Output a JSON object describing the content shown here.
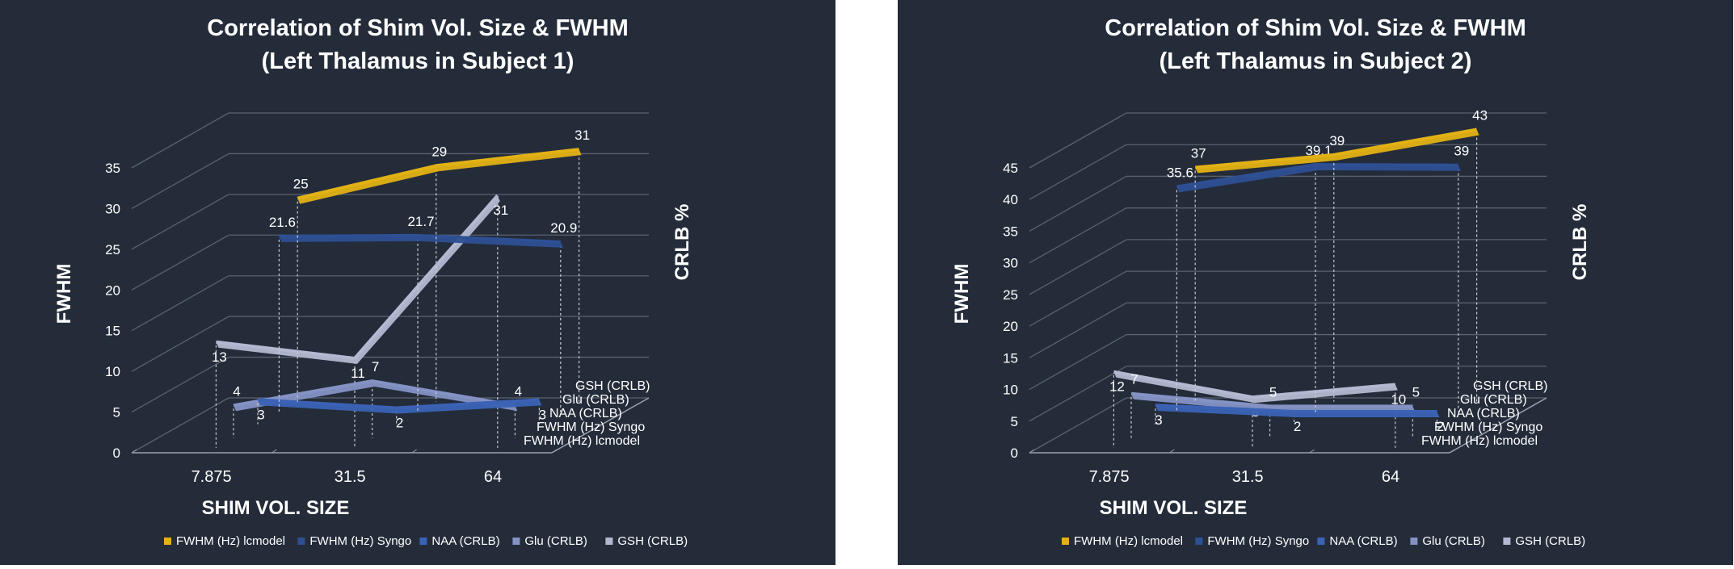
{
  "chart_data": [
    {
      "type": "line",
      "title": "Correlation of Shim Vol. Size & FWHM",
      "subtitle": "(Left Thalamus in Subject 1)",
      "xlabel": "SHIM VOL. SIZE",
      "ylabel": "FWHM",
      "ylabel_right": "CRLB %",
      "categories": [
        "7.875",
        "31.5",
        "64"
      ],
      "ylim": [
        0,
        35
      ],
      "yticks": [
        "0",
        "5",
        "10",
        "15",
        "20",
        "25",
        "30",
        "35"
      ],
      "grid": true,
      "legend_position": "bottom",
      "series": [
        {
          "name": "FWHM (Hz) lcmodel",
          "color": "#e2b114",
          "values": [
            25,
            29,
            31
          ],
          "labels": [
            "25",
            "29",
            "31"
          ]
        },
        {
          "name": "FWHM (Hz) Syngo",
          "color": "#2e4f93",
          "values": [
            21.6,
            21.7,
            20.9
          ],
          "labels": [
            "21.6",
            "21.7",
            "20.9"
          ]
        },
        {
          "name": "NAA (CRLB)",
          "color": "#3b62b5",
          "values": [
            3,
            2,
            3
          ],
          "labels": [
            "3",
            "2",
            "3"
          ]
        },
        {
          "name": "Glu (CRLB)",
          "color": "#8492c4",
          "values": [
            4,
            7,
            4
          ],
          "labels": [
            "4",
            "7",
            "4"
          ]
        },
        {
          "name": "GSH (CRLB)",
          "color": "#b3b9d0",
          "values": [
            13,
            11,
            31
          ],
          "labels": [
            "13",
            "11",
            "31"
          ]
        }
      ],
      "depth_labels": [
        "GSH (CRLB)",
        "Glu (CRLB)",
        "NAA (CRLB)",
        "FWHM (Hz) Syngo",
        "FWHM (Hz) lcmodel"
      ]
    },
    {
      "type": "line",
      "title": "Correlation of Shim Vol. Size & FWHM",
      "subtitle": "(Left Thalamus in Subject 2)",
      "xlabel": "SHIM VOL. SIZE",
      "ylabel": "FWHM",
      "ylabel_right": "CRLB %",
      "categories": [
        "7.875",
        "31.5",
        "64"
      ],
      "ylim": [
        0,
        45
      ],
      "yticks": [
        "0",
        "5",
        "10",
        "15",
        "20",
        "25",
        "30",
        "35",
        "40",
        "45"
      ],
      "grid": true,
      "legend_position": "bottom",
      "series": [
        {
          "name": "FWHM (Hz) lcmodel",
          "color": "#e2b114",
          "values": [
            37,
            39,
            43
          ],
          "labels": [
            "37",
            "39",
            "43"
          ]
        },
        {
          "name": "FWHM (Hz) Syngo",
          "color": "#2e4f93",
          "values": [
            35.6,
            39.1,
            39
          ],
          "labels": [
            "35.6",
            "39.1",
            "39"
          ]
        },
        {
          "name": "NAA (CRLB)",
          "color": "#3b62b5",
          "values": [
            3,
            2,
            2
          ],
          "labels": [
            "3",
            "2",
            "2"
          ]
        },
        {
          "name": "Glu (CRLB)",
          "color": "#8492c4",
          "values": [
            7,
            5,
            5
          ],
          "labels": [
            "7",
            "5",
            "5"
          ]
        },
        {
          "name": "GSH (CRLB)",
          "color": "#b3b9d0",
          "values": [
            12,
            8,
            10
          ],
          "labels": [
            "12",
            "8",
            "10"
          ]
        }
      ],
      "depth_labels": [
        "GSH (CRLB)",
        "Glu (CRLB)",
        "NAA (CRLB)",
        "FWHM (Hz) Syngo",
        "FWHM (Hz) lcmodel"
      ]
    }
  ]
}
